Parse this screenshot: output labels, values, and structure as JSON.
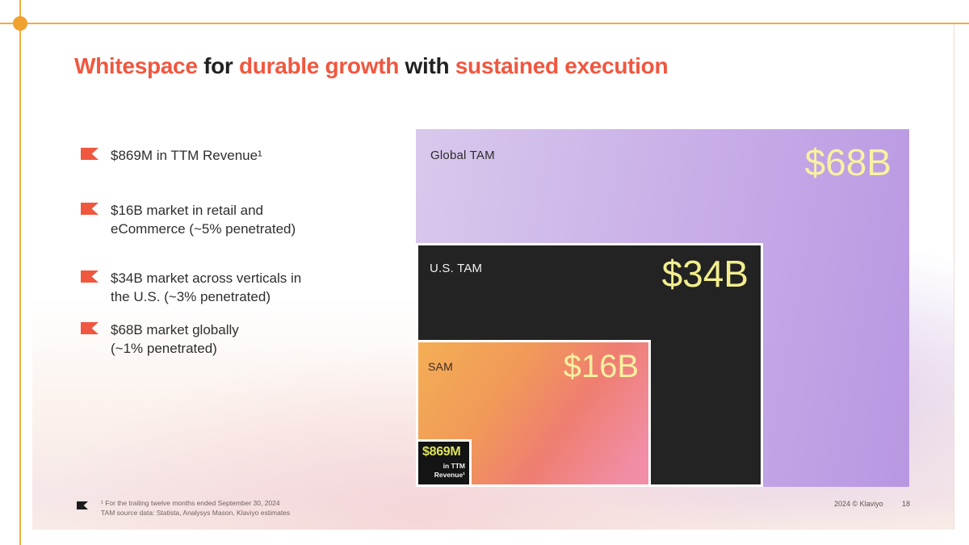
{
  "slide": {
    "title": {
      "segments": [
        {
          "text": "Whitespace"
        },
        {
          "text": " for "
        },
        {
          "text": "durable growth"
        },
        {
          "text": " with "
        },
        {
          "text": "sustained execution"
        }
      ]
    },
    "bullets": [
      {
        "line1": "$869M in TTM Revenue¹",
        "line2": ""
      },
      {
        "line1": "$16B market in retail and",
        "line2": "eCommerce (~5% penetrated)"
      },
      {
        "line1": "$34B market across verticals in",
        "line2": "the U.S. (~3% penetrated)"
      },
      {
        "line1": "$68B market globally",
        "line2": "(~1% penetrated)"
      }
    ],
    "chart": {
      "global_tam": {
        "label": "Global TAM",
        "value": "$68B"
      },
      "us_tam": {
        "label": "U.S. TAM",
        "value": "$34B"
      },
      "sam": {
        "label": "SAM",
        "value": "$16B"
      },
      "revenue": {
        "value": "$869M",
        "sub_line1": "in TTM",
        "sub_line2": "Revenue¹"
      }
    },
    "footer": {
      "note_line1": "¹ For the trailing twelve months ended September 30, 2024",
      "note_line2": "TAM source data: Statista, Analysys Mason, Klaviyo estimates",
      "copyright": "2024 © Klaviyo",
      "page_number": "18"
    },
    "colors": {
      "accent_orange": "#F0573F",
      "guide_amber": "#F2AC3C",
      "pale_yellow_value": "#F7F2A2",
      "revenue_yellow_green": "#DDE45C",
      "purple_gradient_start": "#D8C9EC",
      "purple_gradient_end": "#B897E2",
      "sam_gradient_start": "#F4AE55",
      "sam_gradient_end": "#F18EA6",
      "dark_box": "#232323"
    }
  },
  "chart_data": {
    "type": "area",
    "variant": "nested-proportional-rectangles",
    "title": "Market whitespace: TAM vs current revenue",
    "categories": [
      "Global TAM",
      "U.S. TAM",
      "SAM",
      "TTM Revenue"
    ],
    "values_billions_usd": [
      68,
      34,
      16,
      0.869
    ],
    "value_labels": [
      "$68B",
      "$34B",
      "$16B",
      "$869M"
    ],
    "annotations": [
      "Global: ~1% penetrated",
      "U.S.: ~3% penetrated",
      "Retail and eCommerce SAM: ~5% penetrated"
    ],
    "legend_position": "none",
    "grid": false
  }
}
